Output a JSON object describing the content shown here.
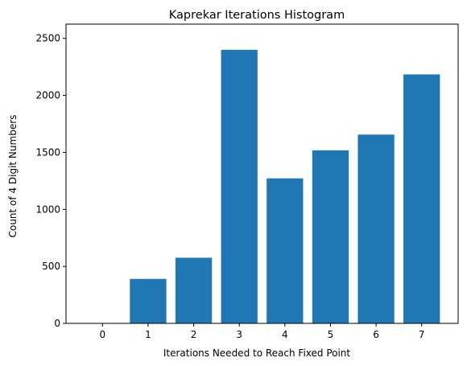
{
  "chart_data": {
    "type": "bar",
    "title": "Kaprekar Iterations Histogram",
    "xlabel": "Iterations Needed to Reach Fixed Point",
    "ylabel": "Count of 4 Digit Numbers",
    "categories": [
      "0",
      "1",
      "2",
      "3",
      "4",
      "5",
      "6",
      "7"
    ],
    "values": [
      0,
      390,
      576,
      2400,
      1272,
      1518,
      1656,
      2184
    ],
    "ylim": [
      0,
      2500
    ],
    "yticks": [
      0,
      500,
      1000,
      1500,
      2000,
      2500
    ],
    "ytick_labels": [
      "0",
      "500",
      "1000",
      "1500",
      "2000",
      "2500"
    ],
    "bar_color": "#1f77b4",
    "grid": false,
    "legend": "none"
  }
}
